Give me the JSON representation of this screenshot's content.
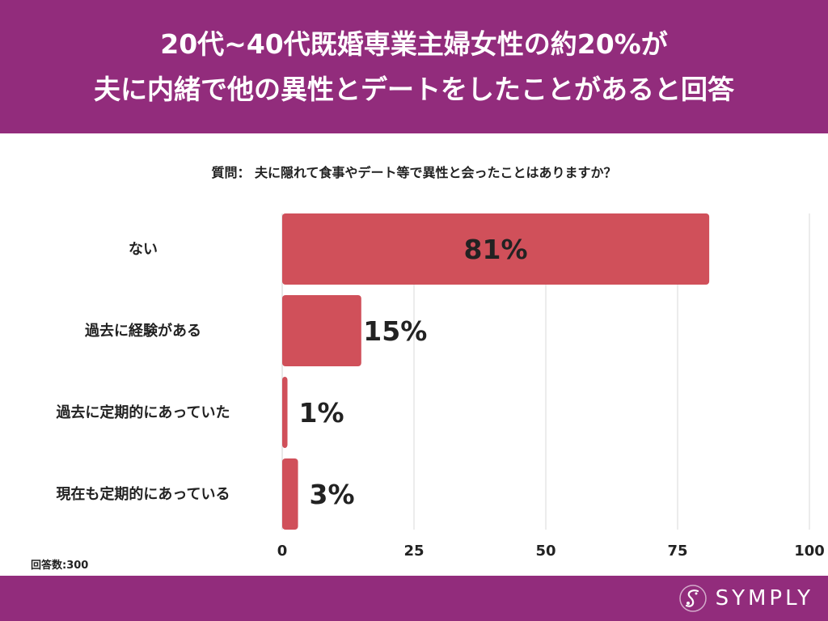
{
  "header": {
    "line1": "20代~40代既婚専業主婦女性の約20%が",
    "line2": "夫に内緒で他の異性とデートをしたことがあると回答"
  },
  "question": "質問： 夫に隠れて食事やデート等で異性と会ったことはありますか？",
  "responses": "回答数:300",
  "footer": {
    "brand": "SYMPLY"
  },
  "colors": {
    "header_bg": "#922c7c",
    "bar": "#d0505a",
    "grid": "#d9d9d9"
  },
  "chart_data": {
    "type": "bar",
    "orientation": "horizontal",
    "categories": [
      "ない",
      "過去に経験がある",
      "過去に定期的にあっていた",
      "現在も定期的にあっている"
    ],
    "values": [
      81,
      15,
      1,
      3
    ],
    "value_labels": [
      "81%",
      "15%",
      "1%",
      "3%"
    ],
    "xlim": [
      0,
      100
    ],
    "xticks": [
      0,
      25,
      50,
      75,
      100
    ],
    "xtick_labels": [
      "0",
      "25",
      "50",
      "75",
      "100"
    ],
    "grid": true,
    "title": "質問： 夫に隠れて食事やデート等で異性と会ったことはありますか？"
  }
}
